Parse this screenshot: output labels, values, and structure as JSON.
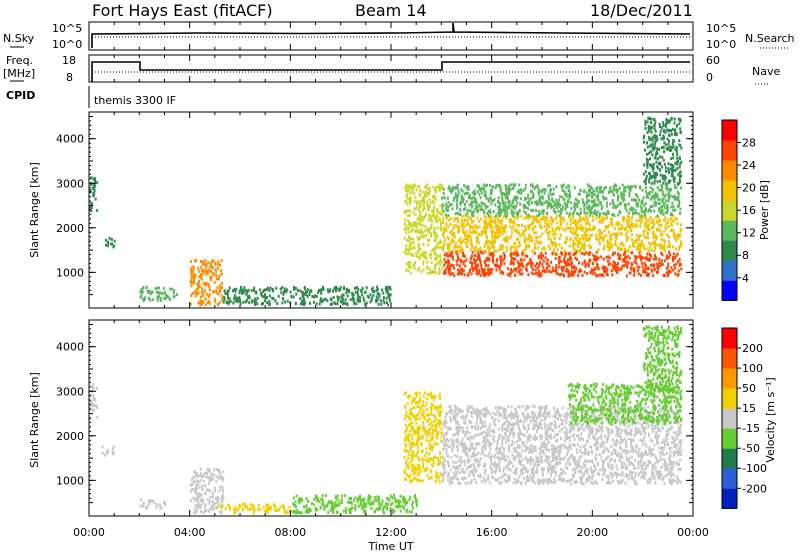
{
  "header": {
    "station": "Fort Hays East (fitACF)",
    "beam": "Beam 14",
    "date": "18/Dec/2011"
  },
  "status_panels": {
    "nsky_label": "N.Sky",
    "nsky_ticks": [
      "10^5",
      "10^0"
    ],
    "nsearch_label": "N.Search",
    "nsearch_ticks": [
      "10^5",
      "10^0"
    ],
    "freq_label": "Freq.",
    "freq_unit": "[MHz]",
    "freq_ticks": [
      "18",
      "8"
    ],
    "nave_label": "Nave",
    "nave_ticks": [
      "60",
      "0"
    ],
    "cpid_label": "CPID",
    "cpid_value": "themis 3300 IF"
  },
  "colors": {
    "frame": "#000000",
    "power_scale": [
      "#0000ff",
      "#2f6fd0",
      "#2f8a4a",
      "#5cb85c",
      "#c8d92a",
      "#f2c200",
      "#ff8c00",
      "#ff4400",
      "#ff0000"
    ],
    "velocity_scale": [
      "#0020c0",
      "#2a5fd8",
      "#1f7a50",
      "#66cc33",
      "#c8c8c8",
      "#f2d000",
      "#ff9900",
      "#ff5500",
      "#ff0000"
    ],
    "ground_scatter": "#c8c8c8"
  },
  "chart_data": [
    {
      "type": "heatmap",
      "name": "power-panel",
      "ylabel": "Slant Range [km]",
      "y_ticks": [
        "4000",
        "3000",
        "2000",
        "1000"
      ],
      "ylim": [
        200,
        4600
      ],
      "x_range_hours": [
        0,
        24
      ],
      "colorbar": {
        "label": "Power [dB]",
        "ticks": [
          "28",
          "24",
          "20",
          "16",
          "12",
          "8",
          "4"
        ],
        "range": [
          0,
          32
        ]
      },
      "echo_regions": [
        {
          "t_start": 0.0,
          "t_end": 0.3,
          "r_min": 2400,
          "r_max": 3200,
          "value": 10
        },
        {
          "t_start": 0.5,
          "t_end": 1.0,
          "r_min": 1600,
          "r_max": 1800,
          "value": 8
        },
        {
          "t_start": 2.0,
          "t_end": 3.5,
          "r_min": 400,
          "r_max": 700,
          "value": 14
        },
        {
          "t_start": 4.0,
          "t_end": 5.3,
          "r_min": 300,
          "r_max": 1300,
          "value": 22
        },
        {
          "t_start": 5.3,
          "t_end": 12.0,
          "r_min": 300,
          "r_max": 700,
          "value": 8
        },
        {
          "t_start": 12.5,
          "t_end": 14.0,
          "r_min": 1000,
          "r_max": 3000,
          "value": 16
        },
        {
          "t_start": 14.0,
          "t_end": 23.5,
          "r_min": 950,
          "r_max": 1500,
          "value": 28
        },
        {
          "t_start": 14.0,
          "t_end": 23.5,
          "r_min": 1500,
          "r_max": 2300,
          "value": 18
        },
        {
          "t_start": 14.0,
          "t_end": 23.5,
          "r_min": 2300,
          "r_max": 3000,
          "value": 12
        },
        {
          "t_start": 22.0,
          "t_end": 23.5,
          "r_min": 3000,
          "r_max": 4500,
          "value": 10
        }
      ]
    },
    {
      "type": "heatmap",
      "name": "velocity-panel",
      "ylabel": "Slant Range [km]",
      "y_ticks": [
        "4000",
        "3000",
        "2000",
        "1000"
      ],
      "ylim": [
        200,
        4600
      ],
      "xlabel": "Time UT",
      "x_ticks": [
        "00:00",
        "04:00",
        "08:00",
        "12:00",
        "16:00",
        "20:00",
        "00:00"
      ],
      "x_range_hours": [
        0,
        24
      ],
      "colorbar": {
        "label": "Velocity [m s⁻¹]",
        "ticks": [
          "200",
          "100",
          "50",
          "15",
          "-15",
          "-50",
          "-100",
          "-200"
        ],
        "range": [
          -250,
          250
        ]
      },
      "echo_regions": [
        {
          "t_start": 0.0,
          "t_end": 0.3,
          "r_min": 2400,
          "r_max": 3200,
          "value": 0,
          "ground_scatter": true
        },
        {
          "t_start": 0.5,
          "t_end": 1.0,
          "r_min": 1600,
          "r_max": 1800,
          "value": 0,
          "ground_scatter": true
        },
        {
          "t_start": 2.0,
          "t_end": 3.0,
          "r_min": 400,
          "r_max": 600,
          "value": 0,
          "ground_scatter": true
        },
        {
          "t_start": 4.0,
          "t_end": 5.3,
          "r_min": 300,
          "r_max": 1300,
          "value": 0,
          "ground_scatter": true
        },
        {
          "t_start": 5.0,
          "t_end": 8.0,
          "r_min": 300,
          "r_max": 500,
          "value": 40
        },
        {
          "t_start": 8.0,
          "t_end": 13.0,
          "r_min": 300,
          "r_max": 700,
          "value": -60
        },
        {
          "t_start": 12.5,
          "t_end": 14.0,
          "r_min": 1000,
          "r_max": 3000,
          "value": 30
        },
        {
          "t_start": 14.0,
          "t_end": 23.5,
          "r_min": 950,
          "r_max": 2700,
          "value": 0,
          "ground_scatter": true
        },
        {
          "t_start": 19.0,
          "t_end": 23.5,
          "r_min": 2300,
          "r_max": 3200,
          "value": -30
        },
        {
          "t_start": 22.0,
          "t_end": 23.5,
          "r_min": 3000,
          "r_max": 4500,
          "value": -40
        }
      ]
    }
  ]
}
